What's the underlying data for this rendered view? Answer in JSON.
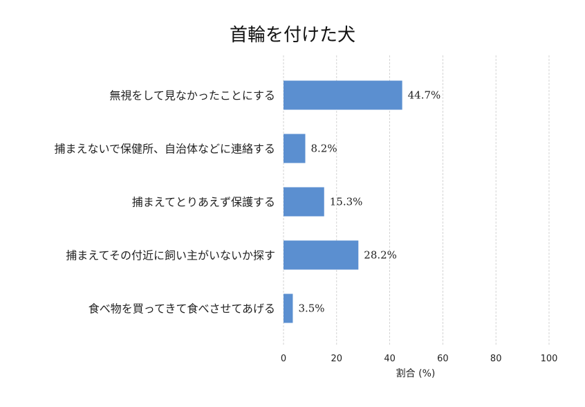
{
  "chart_data": {
    "type": "bar",
    "orientation": "horizontal",
    "title": "首輪を付けた犬",
    "xlabel": "割合 (%)",
    "ylabel": "",
    "xlim": [
      0,
      100
    ],
    "x_ticks": [
      0,
      20,
      40,
      60,
      80,
      100
    ],
    "grid": "vertical dashed",
    "bar_color": "#5b8fd0",
    "categories": [
      "無視をして見なかったことにする",
      "捕まえないで保健所、自治体などに連絡する",
      "捕まえてとりあえず保護する",
      "捕まえてその付近に飼い主がいないか探す",
      "食べ物を買ってきて食べさせてあげる"
    ],
    "values": [
      44.7,
      8.2,
      15.3,
      28.2,
      3.5
    ],
    "value_labels": [
      "44.7%",
      "8.2%",
      "15.3%",
      "28.2%",
      "3.5%"
    ]
  }
}
